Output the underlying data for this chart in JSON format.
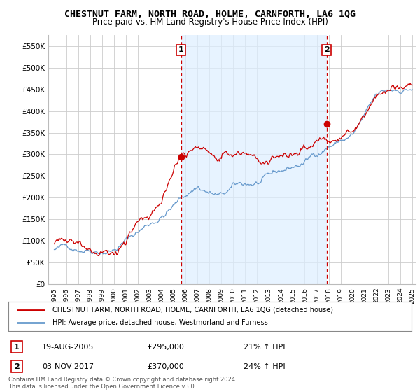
{
  "title": "CHESTNUT FARM, NORTH ROAD, HOLME, CARNFORTH, LA6 1QG",
  "subtitle": "Price paid vs. HM Land Registry's House Price Index (HPI)",
  "ylim": [
    0,
    575000
  ],
  "yticks": [
    0,
    50000,
    100000,
    150000,
    200000,
    250000,
    300000,
    350000,
    400000,
    450000,
    500000,
    550000
  ],
  "ytick_labels": [
    "£0",
    "£50K",
    "£100K",
    "£150K",
    "£200K",
    "£250K",
    "£300K",
    "£350K",
    "£400K",
    "£450K",
    "£500K",
    "£550K"
  ],
  "sale1_date_num": 2005.637,
  "sale1_price": 295000,
  "sale1_date_str": "19-AUG-2005",
  "sale1_pct": "21%",
  "sale2_date_num": 2017.839,
  "sale2_price": 370000,
  "sale2_date_str": "03-NOV-2017",
  "sale2_pct": "24%",
  "red_color": "#cc0000",
  "blue_color": "#6699cc",
  "shade_color": "#ddeeff",
  "grid_color": "#cccccc",
  "bg_color": "#ffffff",
  "legend_label_red": "CHESTNUT FARM, NORTH ROAD, HOLME, CARNFORTH, LA6 1QG (detached house)",
  "legend_label_blue": "HPI: Average price, detached house, Westmorland and Furness",
  "footnote": "Contains HM Land Registry data © Crown copyright and database right 2024.\nThis data is licensed under the Open Government Licence v3.0.",
  "xstart": 1995,
  "xend": 2025
}
